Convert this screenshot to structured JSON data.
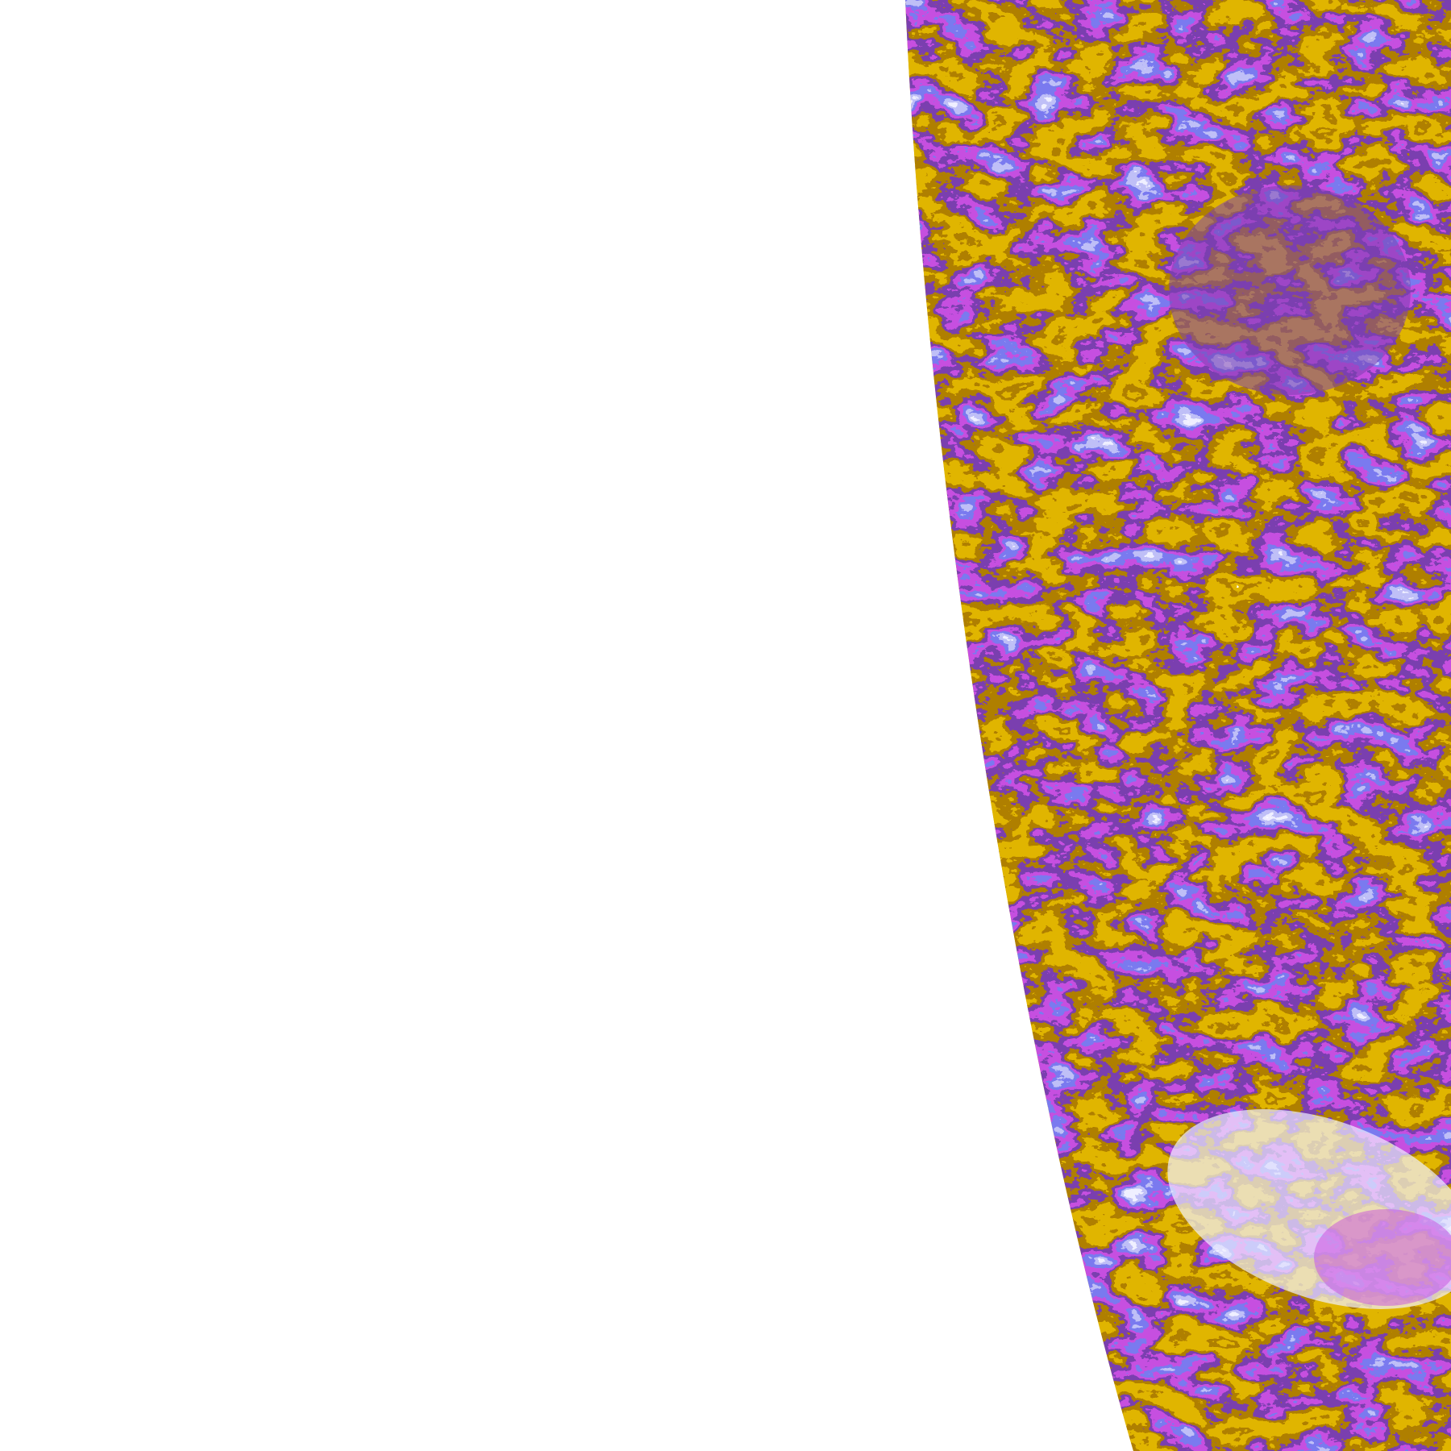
{
  "image": {
    "kind": "classified satellite imagery (partial disk, limb on left)",
    "background_color": "#ffffff",
    "palette": {
      "no_data": "#ffffff",
      "pale_cloud": "#f0f0ff",
      "lavender": "#c0c0f8",
      "blue_violet": "#7a7af0",
      "magenta": "#c850e0",
      "purple": "#7b3fb0",
      "dark_gold": "#b08000",
      "gold": "#e0b400"
    }
  }
}
